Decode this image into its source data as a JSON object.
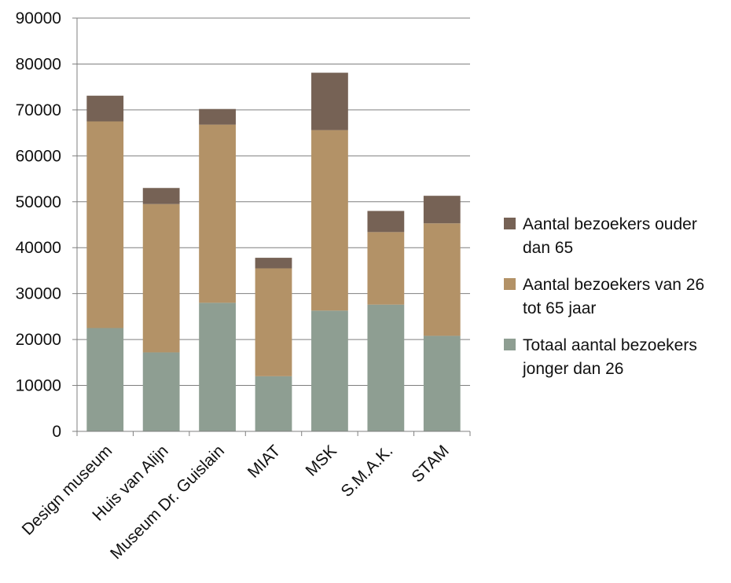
{
  "chart_data": {
    "type": "bar",
    "stacked": true,
    "categories": [
      "Design museum",
      "Huis van Alijn",
      "Museum Dr. Guislain",
      "MIAT",
      "MSK",
      "S.M.A.K.",
      "STAM"
    ],
    "series": [
      {
        "name": "Totaal aantal bezoekers jonger dan 26",
        "color": "#8E9E92",
        "values": [
          22500,
          17200,
          28000,
          12000,
          26300,
          27600,
          20800
        ]
      },
      {
        "name": "Aantal bezoekers van 26 tot 65 jaar",
        "color": "#B39267",
        "values": [
          45000,
          32300,
          38800,
          23500,
          39300,
          15800,
          24500
        ]
      },
      {
        "name": "Aantal bezoekers ouder dan 65",
        "color": "#766255",
        "values": [
          5600,
          3500,
          3400,
          2300,
          12500,
          4600,
          6000
        ]
      }
    ],
    "ylim": [
      0,
      90000
    ],
    "yticks": [
      "0",
      "10000",
      "20000",
      "30000",
      "40000",
      "50000",
      "60000",
      "70000",
      "80000",
      "90000"
    ],
    "grid": true,
    "legend_position": "right",
    "legend": [
      {
        "line1": "Aantal bezoekers ouder",
        "line2": "dan 65",
        "color": "#766255"
      },
      {
        "line1": "Aantal bezoekers van 26",
        "line2": "tot 65 jaar",
        "color": "#B39267"
      },
      {
        "line1": "Totaal aantal bezoekers",
        "line2": "jonger dan 26",
        "color": "#8E9E92"
      }
    ]
  }
}
